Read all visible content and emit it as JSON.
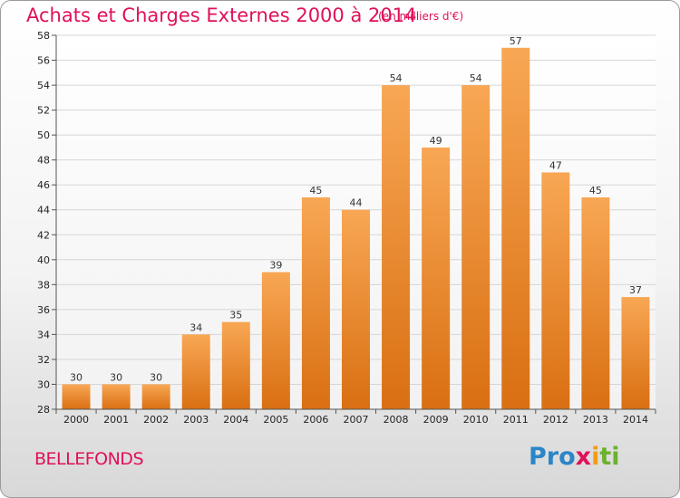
{
  "header": {
    "title": "Achats et Charges Externes 2000 à 2014",
    "subtitle": "(en milliers d'€)"
  },
  "footer": {
    "commune": "BELLEFONDS",
    "logo": [
      "Pro",
      "x",
      "i",
      "ti"
    ]
  },
  "colors": {
    "title": "#e0105a",
    "bar_top": "#f8a754",
    "bar_bottom": "#d96f12",
    "logo_blue": "#2b86c8",
    "logo_pink": "#e0105a",
    "logo_orange": "#f29b19",
    "logo_green": "#6bb22e"
  },
  "chart_data": {
    "type": "bar",
    "title": "Achats et Charges Externes 2000 à 2014",
    "subtitle": "(en milliers d'€)",
    "categories": [
      "2000",
      "2001",
      "2002",
      "2003",
      "2004",
      "2005",
      "2006",
      "2007",
      "2008",
      "2009",
      "2010",
      "2011",
      "2012",
      "2013",
      "2014"
    ],
    "values": [
      30,
      30,
      30,
      34,
      35,
      39,
      45,
      44,
      54,
      49,
      54,
      57,
      47,
      45,
      37
    ],
    "ylim": [
      28,
      58
    ],
    "yticks": [
      28,
      30,
      32,
      34,
      36,
      38,
      40,
      42,
      44,
      46,
      48,
      50,
      52,
      54,
      56,
      58
    ],
    "grid": true,
    "data_labels": true
  }
}
